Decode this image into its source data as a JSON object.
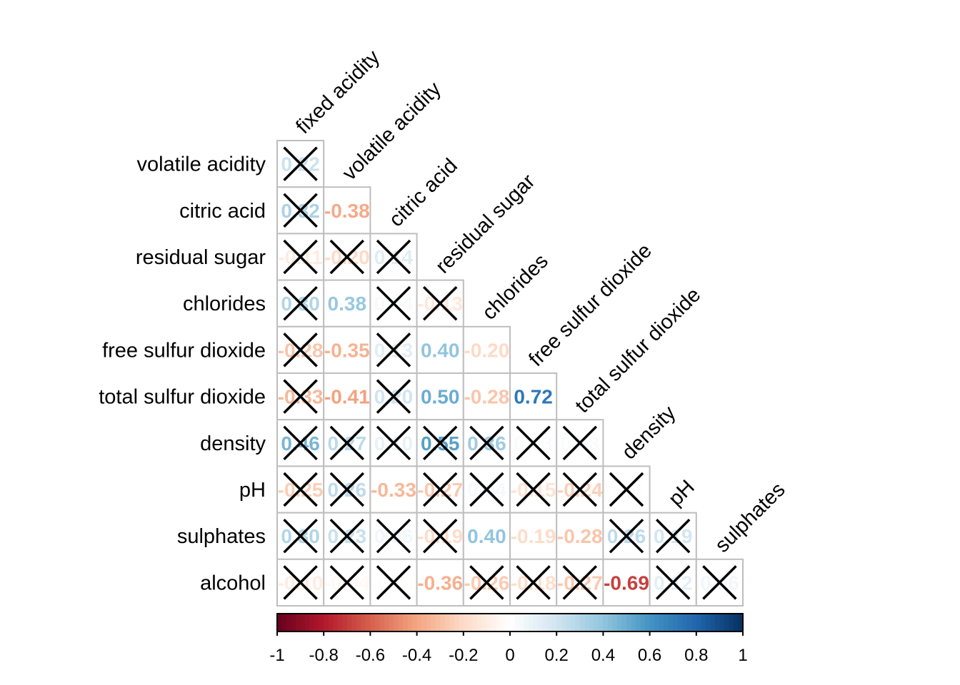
{
  "chart_data": {
    "type": "heatmap",
    "layout": "lower-triangular correlation matrix",
    "row_labels": [
      "volatile acidity",
      "citric acid",
      "residual sugar",
      "chlorides",
      "free sulfur dioxide",
      "total sulfur dioxide",
      "density",
      "pH",
      "sulphates",
      "alcohol"
    ],
    "col_labels": [
      "fixed acidity",
      "volatile acidity",
      "citric acid",
      "residual sugar",
      "chlorides",
      "free sulfur dioxide",
      "total sulfur dioxide",
      "density",
      "pH",
      "sulphates"
    ],
    "values": [
      [
        0.22
      ],
      [
        0.32,
        -0.38
      ],
      [
        -0.11,
        -0.2,
        0.14
      ],
      [
        0.3,
        0.38,
        0.04,
        -0.13
      ],
      [
        -0.28,
        -0.35,
        0.13,
        0.4,
        -0.2
      ],
      [
        -0.33,
        -0.41,
        0.2,
        0.5,
        -0.28,
        0.72
      ],
      [
        0.46,
        0.27,
        0.1,
        0.55,
        0.36,
        0.03,
        0.03
      ],
      [
        -0.25,
        0.26,
        -0.33,
        -0.27,
        0.04,
        -0.15,
        -0.24,
        0.01
      ],
      [
        0.3,
        0.23,
        0.06,
        -0.19,
        0.4,
        -0.19,
        -0.28,
        0.26,
        0.19
      ],
      [
        -0.1,
        -0.04,
        -0.01,
        -0.36,
        -0.26,
        -0.18,
        -0.27,
        -0.69,
        0.12,
        0.06
      ]
    ],
    "insignificant_crossed": [
      [
        1
      ],
      [
        1,
        0
      ],
      [
        1,
        1,
        1
      ],
      [
        1,
        0,
        1,
        1
      ],
      [
        1,
        0,
        1,
        0,
        0
      ],
      [
        1,
        0,
        1,
        0,
        0,
        0
      ],
      [
        1,
        1,
        1,
        1,
        1,
        1,
        1
      ],
      [
        1,
        1,
        0,
        1,
        1,
        1,
        1,
        1
      ],
      [
        1,
        1,
        1,
        1,
        0,
        0,
        0,
        1,
        1
      ],
      [
        1,
        1,
        1,
        0,
        1,
        1,
        1,
        0,
        1,
        1
      ]
    ],
    "colorbar": {
      "ticks": [
        "-1",
        "-0.8",
        "-0.6",
        "-0.4",
        "-0.2",
        "0",
        "0.2",
        "0.4",
        "0.6",
        "0.8",
        "1"
      ],
      "range": [
        -1,
        1
      ],
      "colors": [
        "#67001F",
        "#B2182B",
        "#D6604D",
        "#F4A582",
        "#FDDBC7",
        "#FFFFFF",
        "#D1E5F0",
        "#92C5DE",
        "#4393C3",
        "#2166AC",
        "#053061"
      ]
    },
    "grid": true
  }
}
